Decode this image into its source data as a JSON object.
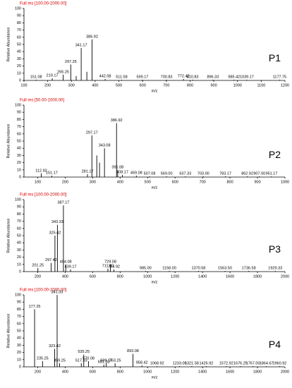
{
  "chart_data": [
    {
      "type": "bar",
      "title": "Full ms [100.00-2000.00]",
      "title_color": "#cc0000",
      "panel_label": "P1",
      "ylabel": "Relative Abundance",
      "xlabel": "m/z",
      "color": "#000000",
      "x": [
        151.08,
        219.17,
        265.25,
        297.25,
        320,
        341.17,
        365,
        386.92,
        442.08,
        511.58,
        599.17,
        700.83,
        772.42,
        810.83,
        896.33,
        985.42,
        1039.17,
        1177.75
      ],
      "values": [
        1,
        3,
        8,
        22,
        6,
        45,
        12,
        57,
        2,
        1,
        1,
        1,
        2,
        1,
        1,
        1,
        1,
        1
      ],
      "peak_labels": [
        "151.08",
        "219.17",
        "265.25",
        "297.25",
        null,
        "341.17",
        null,
        "386.92",
        "442.08",
        "511.58",
        "599.17",
        "700.83",
        "772.42",
        "810.83",
        "896.33",
        "985.42",
        "1039.17",
        "1177.75"
      ],
      "xlim": [
        100,
        1200
      ],
      "xticks": [
        100,
        200,
        300,
        400,
        500,
        600,
        700,
        800,
        900,
        1000,
        1100,
        1200
      ],
      "ylim": [
        0,
        100
      ],
      "yticks": [
        0,
        10,
        20,
        30,
        40,
        50,
        60,
        70,
        80,
        90,
        100
      ]
    },
    {
      "type": "bar",
      "title": "Full ms [50.00-1000.00]",
      "title_color": "#cc0000",
      "panel_label": "P2",
      "ylabel": "Relative Abundance",
      "xlabel": "m/z",
      "color": "#000000",
      "x": [
        112.92,
        151.17,
        281.17,
        297.17,
        315,
        325,
        343.08,
        386.92,
        391.08,
        408.17,
        459.08,
        507.08,
        569,
        637.33,
        703,
        783.17,
        862.92,
        907,
        951.17
      ],
      "values": [
        5,
        2,
        4,
        58,
        30,
        20,
        40,
        75,
        10,
        3,
        2,
        1,
        1,
        1,
        1,
        1,
        1,
        1,
        1
      ],
      "peak_labels": [
        "112.92",
        "151.17",
        "281.17",
        "297.17",
        null,
        null,
        "343.08",
        "386.92",
        "391.08",
        "408.17",
        "459.08",
        "507.08",
        "569.00",
        "637.33",
        "703.00",
        "783.17",
        "862.92",
        "907.00",
        "951.17"
      ],
      "xlim": [
        50,
        1000
      ],
      "xticks": [
        100,
        200,
        300,
        400,
        500,
        600,
        700,
        800,
        900,
        1000
      ],
      "ylim": [
        0,
        100
      ],
      "yticks": [
        0,
        10,
        20,
        30,
        40,
        50,
        60,
        70,
        80,
        90,
        100
      ]
    },
    {
      "type": "bar",
      "title": "Full ms [100.00-2000.00]",
      "title_color": "#cc0000",
      "panel_label": "P3",
      "ylabel": "Relative Abundance",
      "xlabel": "m/z",
      "color": "#000000",
      "x": [
        201.25,
        297.42,
        325.42,
        343.33,
        387.17,
        404.08,
        439.17,
        711,
        729.08,
        754.92,
        985,
        1158,
        1370.58,
        1563.5,
        1736.58,
        1929.33
      ],
      "values": [
        5,
        12,
        50,
        65,
        92,
        10,
        3,
        4,
        10,
        3,
        1,
        1,
        1,
        1,
        1,
        1
      ],
      "peak_labels": [
        "201.25",
        "297.42",
        "325.42",
        "343.33",
        "387.17",
        "404.08",
        "439.17",
        "711.00",
        "729.08",
        "754.92",
        "985.00",
        "1158.00",
        "1370.58",
        "1563.50",
        "1736.58",
        "1929.33"
      ],
      "xlim": [
        100,
        2000
      ],
      "xticks": [
        200,
        400,
        600,
        800,
        1000,
        1200,
        1400,
        1600,
        1800,
        2000
      ],
      "ylim": [
        0,
        100
      ],
      "yticks": [
        0,
        10,
        20,
        30,
        40,
        50,
        60,
        70,
        80,
        90,
        100
      ]
    },
    {
      "type": "bar",
      "title": "Full ms [100.00-2000.00]",
      "title_color": "#cc0000",
      "panel_label": "P4",
      "ylabel": "Relative Abundance",
      "xlabel": "m/z",
      "color": "#000000",
      "x": [
        177.25,
        235.25,
        323.42,
        341.33,
        359.25,
        517.33,
        535.25,
        570.08,
        681.33,
        699.17,
        763.25,
        893.08,
        958.42,
        1068.92,
        1233,
        1321.58,
        1426.92,
        1572.92,
        1676.25,
        1767,
        1864.67,
        1960.92
      ],
      "values": [
        80,
        8,
        25,
        100,
        5,
        5,
        17,
        8,
        3,
        5,
        5,
        18,
        2,
        1,
        1,
        1,
        1,
        1,
        1,
        1,
        1,
        1
      ],
      "peak_labels": [
        "177.25",
        "235.25",
        "323.42",
        "341.33",
        "359.25",
        "517.33",
        "535.25",
        "570.08",
        "681.33",
        "699.17",
        "763.25",
        "893.08",
        "958.42",
        "1068.92",
        "1233.00",
        "1321.58",
        "1426.92",
        "1572.92",
        "1676.25",
        "1767.00",
        "1864.67",
        "1960.92"
      ],
      "xlim": [
        100,
        2000
      ],
      "xticks": [
        200,
        400,
        600,
        800,
        1000,
        1200,
        1400,
        1600,
        1800,
        2000
      ],
      "ylim": [
        0,
        100
      ],
      "yticks": [
        0,
        10,
        20,
        30,
        40,
        50,
        60,
        70,
        80,
        90,
        100
      ]
    }
  ]
}
